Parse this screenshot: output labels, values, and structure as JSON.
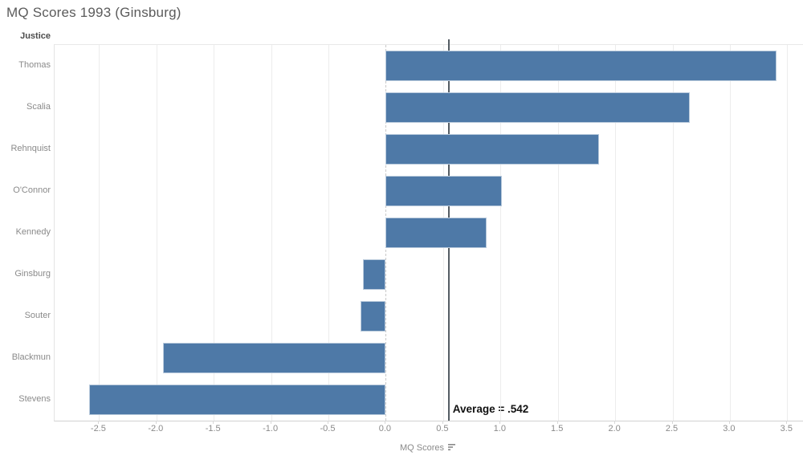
{
  "title": "MQ Scores 1993 (Ginsburg)",
  "row_header": "Justice",
  "axis": {
    "label": "MQ Scores",
    "sort_icon": "sort-descending-icon",
    "ticks": [
      "-2.5",
      "-2.0",
      "-1.5",
      "-1.0",
      "-0.5",
      "0.0",
      "0.5",
      "1.0",
      "1.5",
      "2.0",
      "2.5",
      "3.0",
      "3.5"
    ]
  },
  "chart_data": {
    "type": "bar",
    "orientation": "horizontal",
    "title": "MQ Scores 1993 (Ginsburg)",
    "xlabel": "MQ Scores",
    "ylabel": "Justice",
    "categories": [
      "Thomas",
      "Scalia",
      "Rehnquist",
      "O'Connor",
      "Kennedy",
      "Ginsburg",
      "Souter",
      "Blackmun",
      "Stevens"
    ],
    "values": [
      3.41,
      2.65,
      1.86,
      1.01,
      0.88,
      -0.2,
      -0.22,
      -1.94,
      -2.59
    ],
    "xlim": [
      -2.888,
      3.638
    ],
    "grid": true,
    "reference_line": {
      "value": 0.542,
      "label": "Average = .542"
    },
    "colors": {
      "bar": "#4e79a7",
      "bar_border": "#b9cadc",
      "reference_line": "#545c63",
      "gridline": "#ececec",
      "text_muted": "#8a8a8a"
    }
  }
}
